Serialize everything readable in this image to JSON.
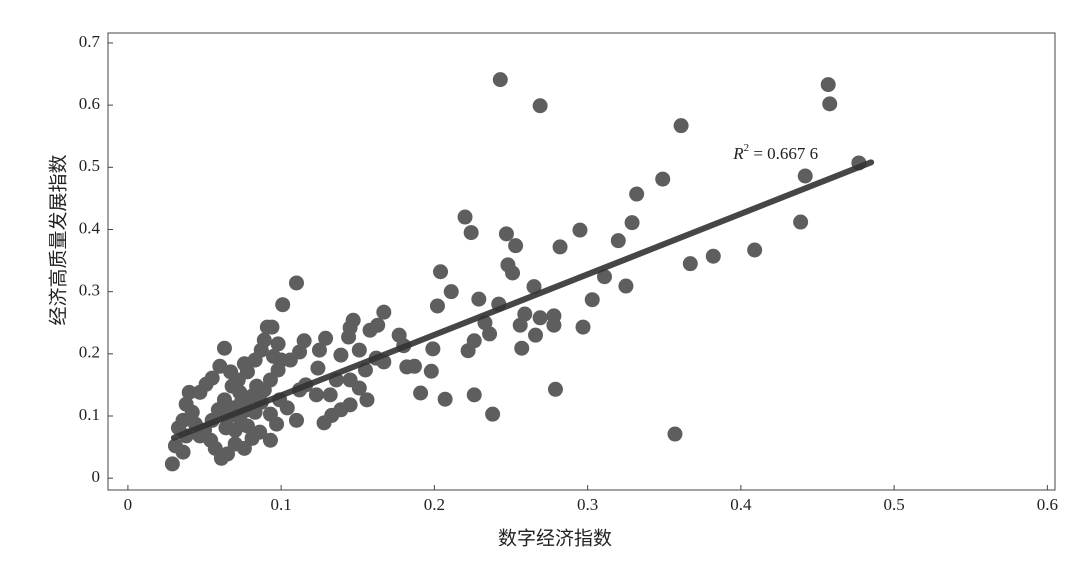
{
  "chart_data": {
    "type": "scatter",
    "xlabel": "数字经济指数",
    "ylabel": "经济高质量发展指数",
    "xlim": [
      -0.013,
      0.605
    ],
    "ylim": [
      -0.019,
      0.716
    ],
    "xticks": [
      0,
      0.1,
      0.2,
      0.3,
      0.4,
      0.5,
      0.6
    ],
    "yticks": [
      0,
      0.1,
      0.2,
      0.3,
      0.4,
      0.5,
      0.6,
      0.7
    ],
    "color": "#5e5e5e",
    "x": [
      0.243,
      0.269,
      0.361,
      0.457,
      0.458,
      0.477,
      0.442,
      0.349,
      0.332,
      0.329,
      0.32,
      0.295,
      0.282,
      0.247,
      0.22,
      0.224,
      0.253,
      0.248,
      0.251,
      0.204,
      0.211,
      0.202,
      0.229,
      0.242,
      0.265,
      0.311,
      0.303,
      0.325,
      0.367,
      0.382,
      0.409,
      0.439,
      0.259,
      0.269,
      0.256,
      0.278,
      0.278,
      0.297,
      0.266,
      0.257,
      0.233,
      0.236,
      0.226,
      0.222,
      0.199,
      0.279,
      0.226,
      0.238,
      0.207,
      0.191,
      0.357,
      0.198,
      0.182,
      0.187,
      0.18,
      0.177,
      0.167,
      0.163,
      0.158,
      0.147,
      0.145,
      0.144,
      0.151,
      0.162,
      0.167,
      0.155,
      0.145,
      0.151,
      0.156,
      0.145,
      0.139,
      0.133,
      0.136,
      0.125,
      0.124,
      0.116,
      0.112,
      0.128,
      0.11,
      0.101,
      0.115,
      0.112,
      0.106,
      0.098,
      0.093,
      0.089,
      0.11,
      0.104,
      0.099,
      0.091,
      0.094,
      0.089,
      0.098,
      0.087,
      0.083,
      0.078,
      0.076,
      0.072,
      0.067,
      0.063,
      0.06,
      0.055,
      0.051,
      0.047,
      0.04,
      0.038,
      0.042,
      0.036,
      0.033,
      0.038,
      0.031,
      0.036,
      0.029,
      0.05,
      0.054,
      0.057,
      0.061,
      0.065,
      0.07,
      0.076,
      0.081,
      0.086,
      0.093,
      0.078,
      0.073,
      0.068,
      0.063,
      0.059,
      0.055,
      0.064,
      0.083,
      0.087,
      0.081,
      0.073,
      0.068,
      0.093,
      0.097,
      0.044,
      0.047,
      0.074,
      0.078,
      0.065,
      0.07,
      0.129,
      0.139,
      0.123,
      0.132,
      0.1,
      0.095,
      0.084
    ],
    "values": [
      0.641,
      0.599,
      0.567,
      0.633,
      0.602,
      0.507,
      0.486,
      0.481,
      0.457,
      0.411,
      0.382,
      0.399,
      0.372,
      0.393,
      0.42,
      0.395,
      0.374,
      0.343,
      0.33,
      0.332,
      0.3,
      0.277,
      0.288,
      0.28,
      0.308,
      0.324,
      0.287,
      0.309,
      0.345,
      0.357,
      0.367,
      0.412,
      0.264,
      0.258,
      0.246,
      0.261,
      0.246,
      0.243,
      0.23,
      0.209,
      0.25,
      0.232,
      0.221,
      0.205,
      0.208,
      0.143,
      0.134,
      0.103,
      0.127,
      0.137,
      0.071,
      0.172,
      0.179,
      0.18,
      0.213,
      0.23,
      0.267,
      0.246,
      0.238,
      0.254,
      0.242,
      0.227,
      0.206,
      0.193,
      0.187,
      0.174,
      0.158,
      0.145,
      0.126,
      0.118,
      0.11,
      0.101,
      0.158,
      0.206,
      0.177,
      0.15,
      0.142,
      0.089,
      0.314,
      0.279,
      0.221,
      0.203,
      0.19,
      0.174,
      0.158,
      0.142,
      0.093,
      0.113,
      0.126,
      0.243,
      0.243,
      0.222,
      0.216,
      0.206,
      0.19,
      0.171,
      0.184,
      0.158,
      0.171,
      0.209,
      0.18,
      0.161,
      0.151,
      0.138,
      0.138,
      0.119,
      0.106,
      0.093,
      0.081,
      0.068,
      0.052,
      0.042,
      0.023,
      0.077,
      0.061,
      0.048,
      0.032,
      0.039,
      0.055,
      0.048,
      0.064,
      0.074,
      0.061,
      0.084,
      0.097,
      0.113,
      0.126,
      0.11,
      0.093,
      0.081,
      0.106,
      0.122,
      0.132,
      0.138,
      0.148,
      0.103,
      0.087,
      0.087,
      0.068,
      0.122,
      0.11,
      0.097,
      0.077,
      0.225,
      0.198,
      0.134,
      0.134,
      0.19,
      0.196,
      0.148
    ],
    "trendline": {
      "x": [
        0.03,
        0.485
      ],
      "y": [
        0.065,
        0.508
      ],
      "color": "#333333"
    },
    "annotation": {
      "base": "R",
      "exponent": "2",
      "text": " = 0.667 6",
      "x": 0.395,
      "y": 0.52
    }
  }
}
